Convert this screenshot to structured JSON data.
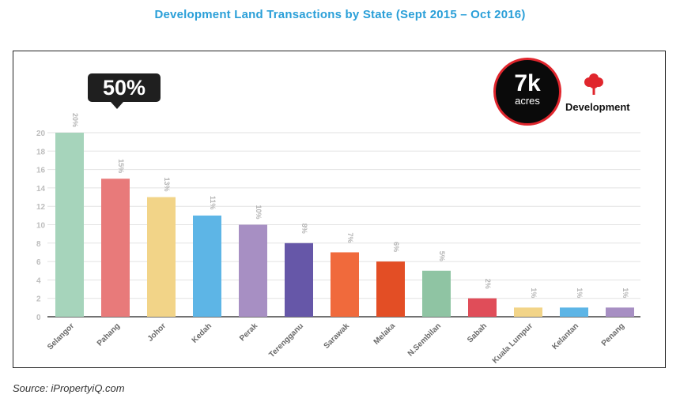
{
  "title": "Development Land Transactions by State (Sept 2015 – Oct 2016)",
  "source": "Source: iPropertyiQ.com",
  "callout": {
    "text": "50%"
  },
  "badge": {
    "value": "7k",
    "unit": "acres"
  },
  "legend": {
    "label": "Development",
    "icon": "tree-icon",
    "icon_color": "#e0262d"
  },
  "chart_data": {
    "type": "bar",
    "categories": [
      "Selangor",
      "Pahang",
      "Johor",
      "Kedah",
      "Perak",
      "Terengganu",
      "Sarawak",
      "Melaka",
      "N.Sembilan",
      "Sabah",
      "Kuala Lumpur",
      "Kelantan",
      "Penang"
    ],
    "values": [
      20,
      15,
      13,
      11,
      10,
      8,
      7,
      6,
      5,
      2,
      1,
      1,
      1
    ],
    "data_labels": [
      "20%",
      "15%",
      "13%",
      "11%",
      "10%",
      "8%",
      "7%",
      "6%",
      "5%",
      "2%",
      "1%",
      "1%",
      "1%"
    ],
    "colors": [
      "#a6d4bb",
      "#e87a7a",
      "#f2d488",
      "#5db5e6",
      "#a78fc3",
      "#6657a8",
      "#f06a3c",
      "#e34e25",
      "#8fc4a3",
      "#e04d59",
      "#f2d488",
      "#5db5e6",
      "#a78fc3"
    ],
    "yticks": [
      0,
      2,
      4,
      6,
      8,
      10,
      12,
      14,
      16,
      18,
      20
    ],
    "ylim": [
      0,
      20
    ],
    "grid": true
  }
}
